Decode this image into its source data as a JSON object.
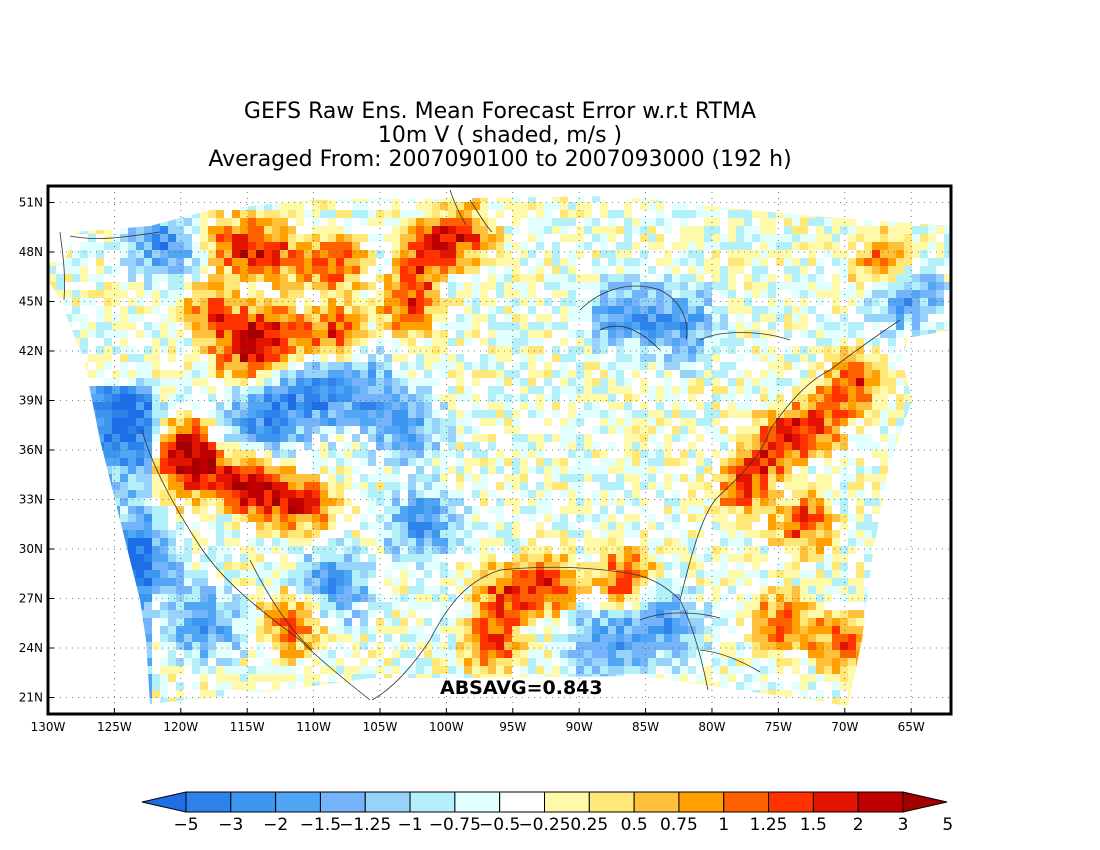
{
  "title": {
    "line1": "GEFS Raw Ens. Mean Forecast Error w.r.t RTMA",
    "line2": "10m V ( shaded, m/s )",
    "line3": "Averaged From: 2007090100 to 2007093000 (192 h)"
  },
  "map": {
    "lon_range": [
      -130,
      -62
    ],
    "lat_range": [
      20,
      52
    ],
    "lat_ticks": [
      {
        "value": 51,
        "label": "51N"
      },
      {
        "value": 48,
        "label": "48N"
      },
      {
        "value": 45,
        "label": "45N"
      },
      {
        "value": 42,
        "label": "42N"
      },
      {
        "value": 39,
        "label": "39N"
      },
      {
        "value": 36,
        "label": "36N"
      },
      {
        "value": 33,
        "label": "33N"
      },
      {
        "value": 30,
        "label": "30N"
      },
      {
        "value": 27,
        "label": "27N"
      },
      {
        "value": 24,
        "label": "24N"
      },
      {
        "value": 21,
        "label": "21N"
      }
    ],
    "lon_ticks": [
      {
        "value": -130,
        "label": "130W"
      },
      {
        "value": -125,
        "label": "125W"
      },
      {
        "value": -120,
        "label": "120W"
      },
      {
        "value": -115,
        "label": "115W"
      },
      {
        "value": -110,
        "label": "110W"
      },
      {
        "value": -105,
        "label": "105W"
      },
      {
        "value": -100,
        "label": "100W"
      },
      {
        "value": -95,
        "label": "95W"
      },
      {
        "value": -90,
        "label": "90W"
      },
      {
        "value": -85,
        "label": "85W"
      },
      {
        "value": -80,
        "label": "80W"
      },
      {
        "value": -75,
        "label": "75W"
      },
      {
        "value": -70,
        "label": "70W"
      },
      {
        "value": -65,
        "label": "65W"
      }
    ],
    "grid": true,
    "absavg": "ABSAVG=0.843"
  },
  "colorbar": {
    "colors": [
      "#1e6ee8",
      "#2d82eb",
      "#3c96f0",
      "#50a5f5",
      "#75b4fa",
      "#96d2fa",
      "#b4f0fa",
      "#e1ffff",
      "#ffffff",
      "#fffaaa",
      "#ffe878",
      "#ffc03c",
      "#ffa000",
      "#ff6000",
      "#ff3200",
      "#e11400",
      "#c00000",
      "#a50000"
    ],
    "labels": [
      "-5",
      "-3",
      "-2",
      "-1.5",
      "-1.25",
      "-1",
      "-0.75",
      "-0.5",
      "-0.25",
      "0.25",
      "0.5",
      "0.75",
      "1",
      "1.25",
      "1.5",
      "2",
      "3",
      "5"
    ]
  }
}
